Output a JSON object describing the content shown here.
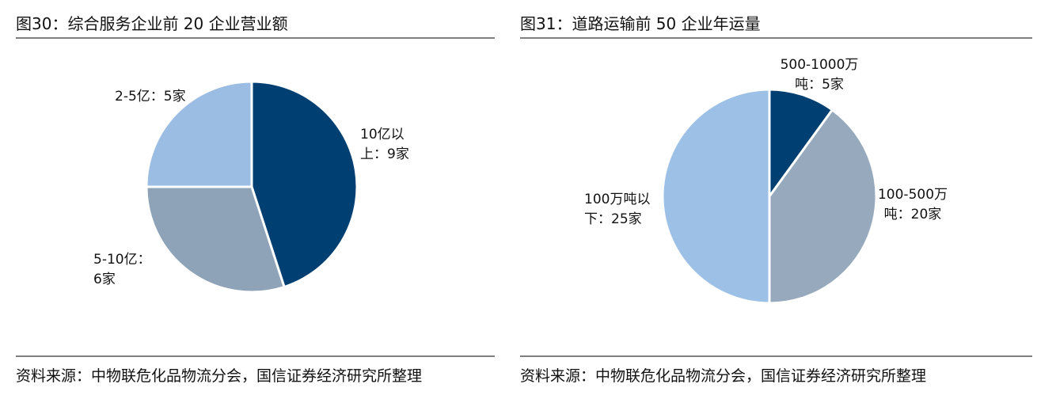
{
  "chart_data": [
    {
      "type": "pie",
      "title": "图30：综合服务企业前 20 企业营业额",
      "values": [
        9,
        6,
        5
      ],
      "value_labels": [
        "10亿以上：9家",
        "5-10亿：6家",
        "2-5亿：5家"
      ],
      "colors": [
        "#003f72",
        "#8fa3b8",
        "#9bbde3"
      ],
      "source": "资料来源：中物联危化品物流分会，国信证券经济研究所整理"
    },
    {
      "type": "pie",
      "title": "图31：道路运输前 50 企业年运量",
      "values": [
        5,
        20,
        25
      ],
      "value_labels": [
        "500-1000万吨：5家",
        "100-500万吨：20家",
        "100万吨以下：25家"
      ],
      "colors": [
        "#003f72",
        "#97a9bc",
        "#9dc0e6"
      ],
      "source": "资料来源：中物联危化品物流分会，国信证券经济研究所整理"
    }
  ]
}
